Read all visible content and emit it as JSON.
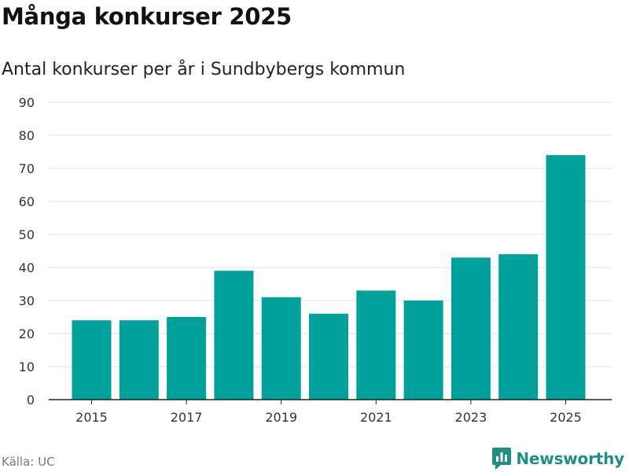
{
  "chart_data": {
    "type": "bar",
    "title": "Många konkurser 2025",
    "subtitle": "Antal konkurser per år i Sundbybergs kommun",
    "categories": [
      "2015",
      "2016",
      "2017",
      "2018",
      "2019",
      "2020",
      "2021",
      "2022",
      "2023",
      "2024",
      "2025"
    ],
    "values": [
      24,
      24,
      25,
      39,
      31,
      26,
      33,
      30,
      43,
      44,
      74
    ],
    "x_tick_labels": [
      "2015",
      "2017",
      "2019",
      "2021",
      "2023",
      "2025"
    ],
    "y_ticks": [
      0,
      10,
      20,
      30,
      40,
      50,
      60,
      70,
      80,
      90
    ],
    "ylim": [
      0,
      90
    ],
    "xlabel": "",
    "ylabel": "",
    "grid": true,
    "bar_color": "#00a19a",
    "gridline_color": "#e2e2e2"
  },
  "footer": {
    "source": "Källa: UC",
    "brand": "Newsworthy",
    "brand_icon": "newsworthy-logo-icon",
    "brand_color": "#1d8f86"
  }
}
